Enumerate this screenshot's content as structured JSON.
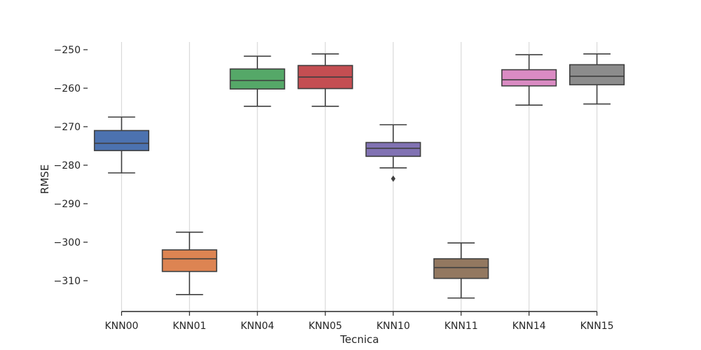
{
  "chart_data": {
    "type": "boxplot",
    "title": "",
    "xlabel": "Tecnica",
    "ylabel": "RMSE",
    "ylim": [
      -318,
      -248
    ],
    "yticks": [
      -250,
      -260,
      -270,
      -280,
      -290,
      -300,
      -310
    ],
    "ytick_labels": [
      "−250",
      "−260",
      "−270",
      "−280",
      "−290",
      "−300",
      "−310"
    ],
    "grid": "vertical",
    "categories": [
      "KNN00",
      "KNN01",
      "KNN04",
      "KNN05",
      "KNN10",
      "KNN11",
      "KNN14",
      "KNN15"
    ],
    "colors": [
      "#4c72b0",
      "#dd8452",
      "#55a868",
      "#c44e52",
      "#8172b3",
      "#937860",
      "#da8bc3",
      "#8c8c8c"
    ],
    "boxes": [
      {
        "name": "KNN00",
        "whisker_high": -267.5,
        "q3": -271.0,
        "median": -274.3,
        "q1": -276.2,
        "whisker_low": -282.0,
        "outliers": []
      },
      {
        "name": "KNN01",
        "whisker_high": -297.4,
        "q3": -302.0,
        "median": -304.3,
        "q1": -307.6,
        "whisker_low": -313.6,
        "outliers": []
      },
      {
        "name": "KNN04",
        "whisker_high": -251.7,
        "q3": -255.0,
        "median": -258.0,
        "q1": -260.2,
        "whisker_low": -264.7,
        "outliers": []
      },
      {
        "name": "KNN05",
        "whisker_high": -251.1,
        "q3": -254.1,
        "median": -257.1,
        "q1": -260.1,
        "whisker_low": -264.7,
        "outliers": []
      },
      {
        "name": "KNN10",
        "whisker_high": -269.5,
        "q3": -274.1,
        "median": -275.6,
        "q1": -277.7,
        "whisker_low": -280.7,
        "outliers": [
          -283.5
        ]
      },
      {
        "name": "KNN11",
        "whisker_high": -300.2,
        "q3": -304.3,
        "median": -306.6,
        "q1": -309.4,
        "whisker_low": -314.5,
        "outliers": []
      },
      {
        "name": "KNN14",
        "whisker_high": -251.3,
        "q3": -255.2,
        "median": -257.8,
        "q1": -259.4,
        "whisker_low": -264.4,
        "outliers": []
      },
      {
        "name": "KNN15",
        "whisker_high": -251.1,
        "q3": -253.9,
        "median": -256.9,
        "q1": -259.1,
        "whisker_low": -264.1,
        "outliers": []
      }
    ]
  }
}
